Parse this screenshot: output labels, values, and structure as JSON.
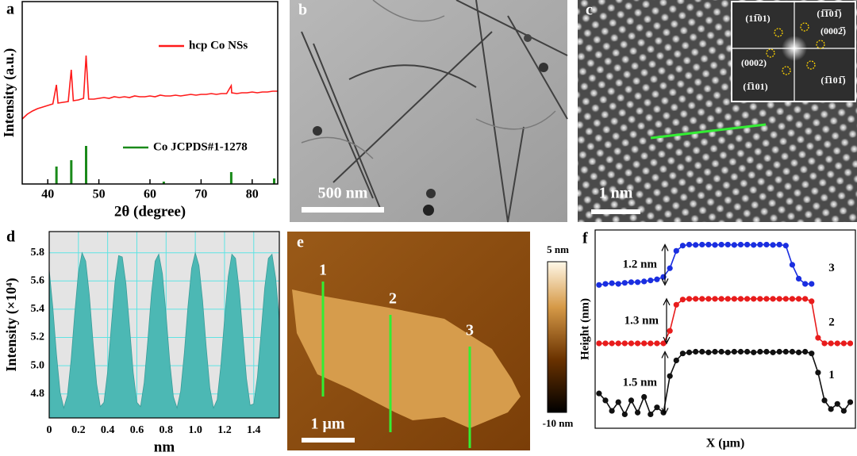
{
  "panel_labels": [
    "a",
    "b",
    "c",
    "d",
    "e",
    "f"
  ],
  "images": {
    "b": {
      "scale_bar": "500 nm"
    },
    "c": {
      "scale_bar": "1 nm",
      "fft_labels": [
        "(11̅01)",
        "(1̅1̅01̅)",
        "(0002̅)",
        "(0002)",
        "(1̅101)",
        "(1̅101̅)"
      ]
    },
    "e": {
      "scale_bar": "1 μm",
      "line_labels": [
        "1",
        "2",
        "3"
      ],
      "colorbar_max": "5 nm",
      "colorbar_min": "-10 nm"
    }
  },
  "chart_data": [
    {
      "type": "line",
      "xlabel": "2θ (degree)",
      "ylabel": "Intensity (a.u.)",
      "xlim": [
        35,
        85
      ],
      "ylim": [
        0,
        230
      ],
      "xticks": [
        40,
        50,
        60,
        70,
        80
      ],
      "series": [
        {
          "name": "hcp Co NSs",
          "color": "#ff1a1a",
          "mark": "line",
          "x": [
            35,
            36,
            37,
            38,
            39,
            40,
            41,
            41.7,
            42,
            43,
            44,
            44.6,
            45,
            46,
            47,
            47.5,
            48,
            49,
            50,
            51,
            52,
            53,
            54,
            55,
            56,
            57,
            58,
            59,
            60,
            61,
            62,
            63,
            64,
            65,
            66,
            67,
            68,
            69,
            70,
            71,
            72,
            73,
            74,
            75,
            75.9,
            76,
            77,
            78,
            79,
            80,
            81,
            82,
            83,
            84,
            85
          ],
          "values": [
            82,
            88,
            92,
            95,
            97,
            99,
            101,
            125,
            102,
            103,
            104,
            144,
            105,
            106,
            108,
            162,
            107,
            107,
            108,
            109,
            108,
            110,
            109,
            110,
            109,
            111,
            110,
            110,
            111,
            110,
            112,
            111,
            111,
            112,
            111,
            112,
            113,
            112,
            113,
            113,
            114,
            113,
            114,
            114,
            124,
            115,
            114,
            115,
            115,
            116,
            115,
            116,
            116,
            117,
            117
          ]
        },
        {
          "name": "Co JCPDS#1-1278",
          "color": "#1a8a1a",
          "mark": "stick",
          "x": [
            41.7,
            44.6,
            47.5,
            62.7,
            75.9,
            84.3
          ],
          "values": [
            22,
            30,
            48,
            3,
            15,
            7
          ]
        }
      ]
    },
    {
      "type": "area",
      "xlabel": "nm",
      "ylabel": "Intensity (×10⁴)",
      "xlim": [
        0,
        1.575
      ],
      "ylim": [
        4.63,
        5.95
      ],
      "xticks": [
        0,
        0.2,
        0.4,
        0.6,
        0.8,
        {
          "value": 1,
          "label": "1.0"
        },
        1.2,
        1.4
      ],
      "yticks": [
        4.8,
        {
          "value": 5,
          "label": "5.0"
        },
        5.2,
        5.4,
        5.6,
        5.8
      ],
      "grid": true,
      "color": "#4cb8b4",
      "background": "#e4e4e4",
      "grid_color": "#5fe3e3",
      "x": [
        0,
        0.025,
        0.05,
        0.075,
        0.1,
        0.125,
        0.15,
        0.175,
        0.2,
        0.225,
        0.25,
        0.275,
        0.3,
        0.325,
        0.35,
        0.375,
        0.4,
        0.425,
        0.45,
        0.475,
        0.5,
        0.525,
        0.55,
        0.575,
        0.6,
        0.625,
        0.65,
        0.675,
        0.7,
        0.725,
        0.75,
        0.775,
        0.8,
        0.825,
        0.85,
        0.875,
        0.9,
        0.925,
        0.95,
        0.975,
        1.0,
        1.025,
        1.05,
        1.075,
        1.1,
        1.125,
        1.15,
        1.175,
        1.2,
        1.225,
        1.25,
        1.275,
        1.3,
        1.325,
        1.35,
        1.375,
        1.4,
        1.425,
        1.45,
        1.475,
        1.5,
        1.525,
        1.55,
        1.575
      ],
      "values": [
        5.68,
        5.41,
        5.08,
        4.81,
        4.7,
        4.79,
        5.04,
        5.37,
        5.66,
        5.8,
        5.74,
        5.5,
        5.17,
        4.87,
        4.71,
        4.74,
        4.96,
        5.28,
        5.59,
        5.78,
        5.77,
        5.58,
        5.27,
        4.95,
        4.74,
        4.71,
        4.88,
        5.18,
        5.51,
        5.74,
        5.79,
        5.65,
        5.36,
        5.03,
        4.78,
        4.7,
        4.82,
        5.09,
        5.42,
        5.69,
        5.8,
        5.71,
        5.46,
        5.13,
        4.84,
        4.7,
        4.76,
        5.0,
        5.33,
        5.63,
        5.79,
        5.76,
        5.54,
        5.22,
        4.91,
        4.72,
        4.73,
        4.92,
        5.23,
        5.55,
        5.76,
        5.79,
        5.62,
        5.32
      ]
    },
    {
      "type": "line",
      "xlabel": "X (μm)",
      "ylabel": "Height (nm)",
      "xlim": [
        -0.6,
        39.8
      ],
      "ylim": [
        0,
        5.7
      ],
      "x": [
        0,
        1,
        2,
        3,
        4,
        5,
        6,
        7,
        8,
        9,
        10,
        11,
        12,
        13,
        14,
        15,
        16,
        17,
        18,
        19,
        20,
        21,
        22,
        23,
        24,
        25,
        26,
        27,
        28,
        29,
        30,
        31,
        32,
        33,
        34,
        35,
        36,
        37,
        38,
        39
      ],
      "series": [
        {
          "name": "1",
          "color": "#111111",
          "step_label": "1.5 nm",
          "values": [
            1.0,
            0.8,
            0.5,
            0.75,
            0.4,
            0.8,
            0.45,
            0.9,
            0.4,
            0.6,
            0.45,
            1.5,
            1.95,
            2.15,
            2.18,
            2.2,
            2.2,
            2.18,
            2.2,
            2.2,
            2.18,
            2.2,
            2.2,
            2.2,
            2.18,
            2.2,
            2.2,
            2.18,
            2.2,
            2.2,
            2.2,
            2.18,
            2.2,
            2.15,
            1.6,
            0.8,
            0.55,
            0.7,
            0.5,
            0.75
          ]
        },
        {
          "name": "2",
          "color": "#e81c1c",
          "step_label": "1.3 nm",
          "values": [
            2.44,
            2.44,
            2.44,
            2.44,
            2.44,
            2.44,
            2.44,
            2.44,
            2.44,
            2.44,
            2.44,
            2.8,
            3.55,
            3.7,
            3.72,
            3.72,
            3.72,
            3.72,
            3.72,
            3.72,
            3.72,
            3.72,
            3.72,
            3.72,
            3.72,
            3.72,
            3.72,
            3.72,
            3.72,
            3.72,
            3.72,
            3.72,
            3.72,
            3.65,
            2.6,
            2.44,
            2.44,
            2.44,
            2.44,
            2.44
          ]
        },
        {
          "name": "3",
          "color": "#1a2ee0",
          "step_label": "1.2 nm",
          "values": [
            4.12,
            4.15,
            4.17,
            4.15,
            4.18,
            4.2,
            4.2,
            4.22,
            4.25,
            4.28,
            4.35,
            4.6,
            5.1,
            5.25,
            5.28,
            5.27,
            5.28,
            5.28,
            5.27,
            5.28,
            5.28,
            5.27,
            5.28,
            5.28,
            5.27,
            5.28,
            5.28,
            5.27,
            5.28,
            5.25,
            4.7,
            4.3,
            4.15,
            4.15,
            null,
            null,
            null,
            null,
            null,
            null
          ]
        }
      ]
    }
  ]
}
